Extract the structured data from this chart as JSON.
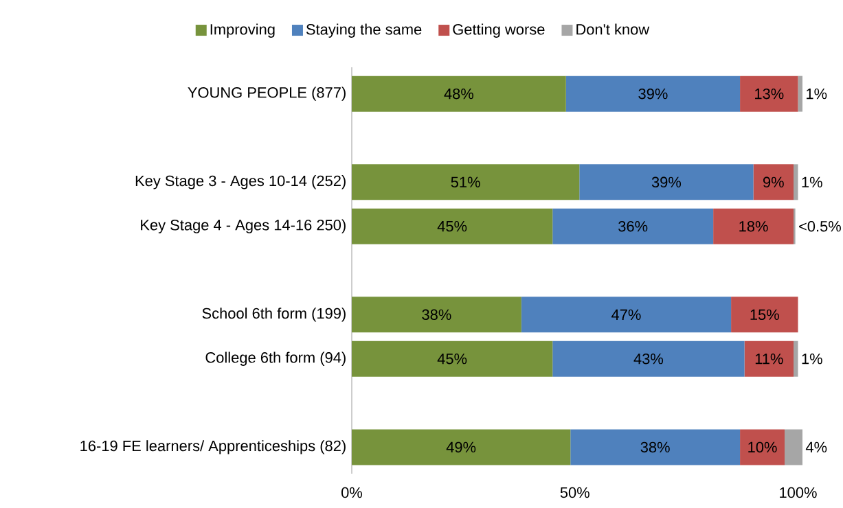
{
  "chart_data": {
    "type": "bar",
    "orientation": "horizontal",
    "stacked": true,
    "legend": "top",
    "categories": [
      "YOUNG PEOPLE (877)",
      null,
      "Key Stage 3 - Ages 10-14 (252)",
      "Key Stage 4 - Ages 14-16 250)",
      null,
      "School 6th form (199)",
      "College 6th form (94)",
      null,
      "16-19 FE learners/ Apprenticeships (82)"
    ],
    "xlim": [
      0,
      101
    ],
    "xticks": [
      {
        "value": 0,
        "label": "0%"
      },
      {
        "value": 50,
        "label": "50%"
      },
      {
        "value": 100,
        "label": "100%"
      }
    ],
    "series": [
      {
        "name": "Improving",
        "color": "#77933c",
        "values": [
          48,
          null,
          51,
          45,
          null,
          38,
          45,
          null,
          49
        ],
        "value_labels": [
          "48%",
          null,
          "51%",
          "45%",
          null,
          "38%",
          "45%",
          null,
          "49%"
        ]
      },
      {
        "name": "Staying the same",
        "color": "#4f81bd",
        "values": [
          39,
          null,
          39,
          36,
          null,
          47,
          43,
          null,
          38
        ],
        "value_labels": [
          "39%",
          null,
          "39%",
          "36%",
          null,
          "47%",
          "43%",
          null,
          "38%"
        ]
      },
      {
        "name": "Getting worse",
        "color": "#c0504d",
        "values": [
          13,
          null,
          9,
          18,
          null,
          15,
          11,
          null,
          10
        ],
        "value_labels": [
          "13%",
          null,
          "9%",
          "18%",
          null,
          "15%",
          "11%",
          null,
          "10%"
        ]
      },
      {
        "name": "Don't know",
        "color": "#a6a6a6",
        "values": [
          1,
          null,
          1,
          0.4,
          null,
          0,
          1,
          null,
          4
        ],
        "value_labels": [
          "1%",
          null,
          "1%",
          "<0.5%",
          null,
          null,
          "1%",
          null,
          "4%"
        ]
      }
    ]
  }
}
